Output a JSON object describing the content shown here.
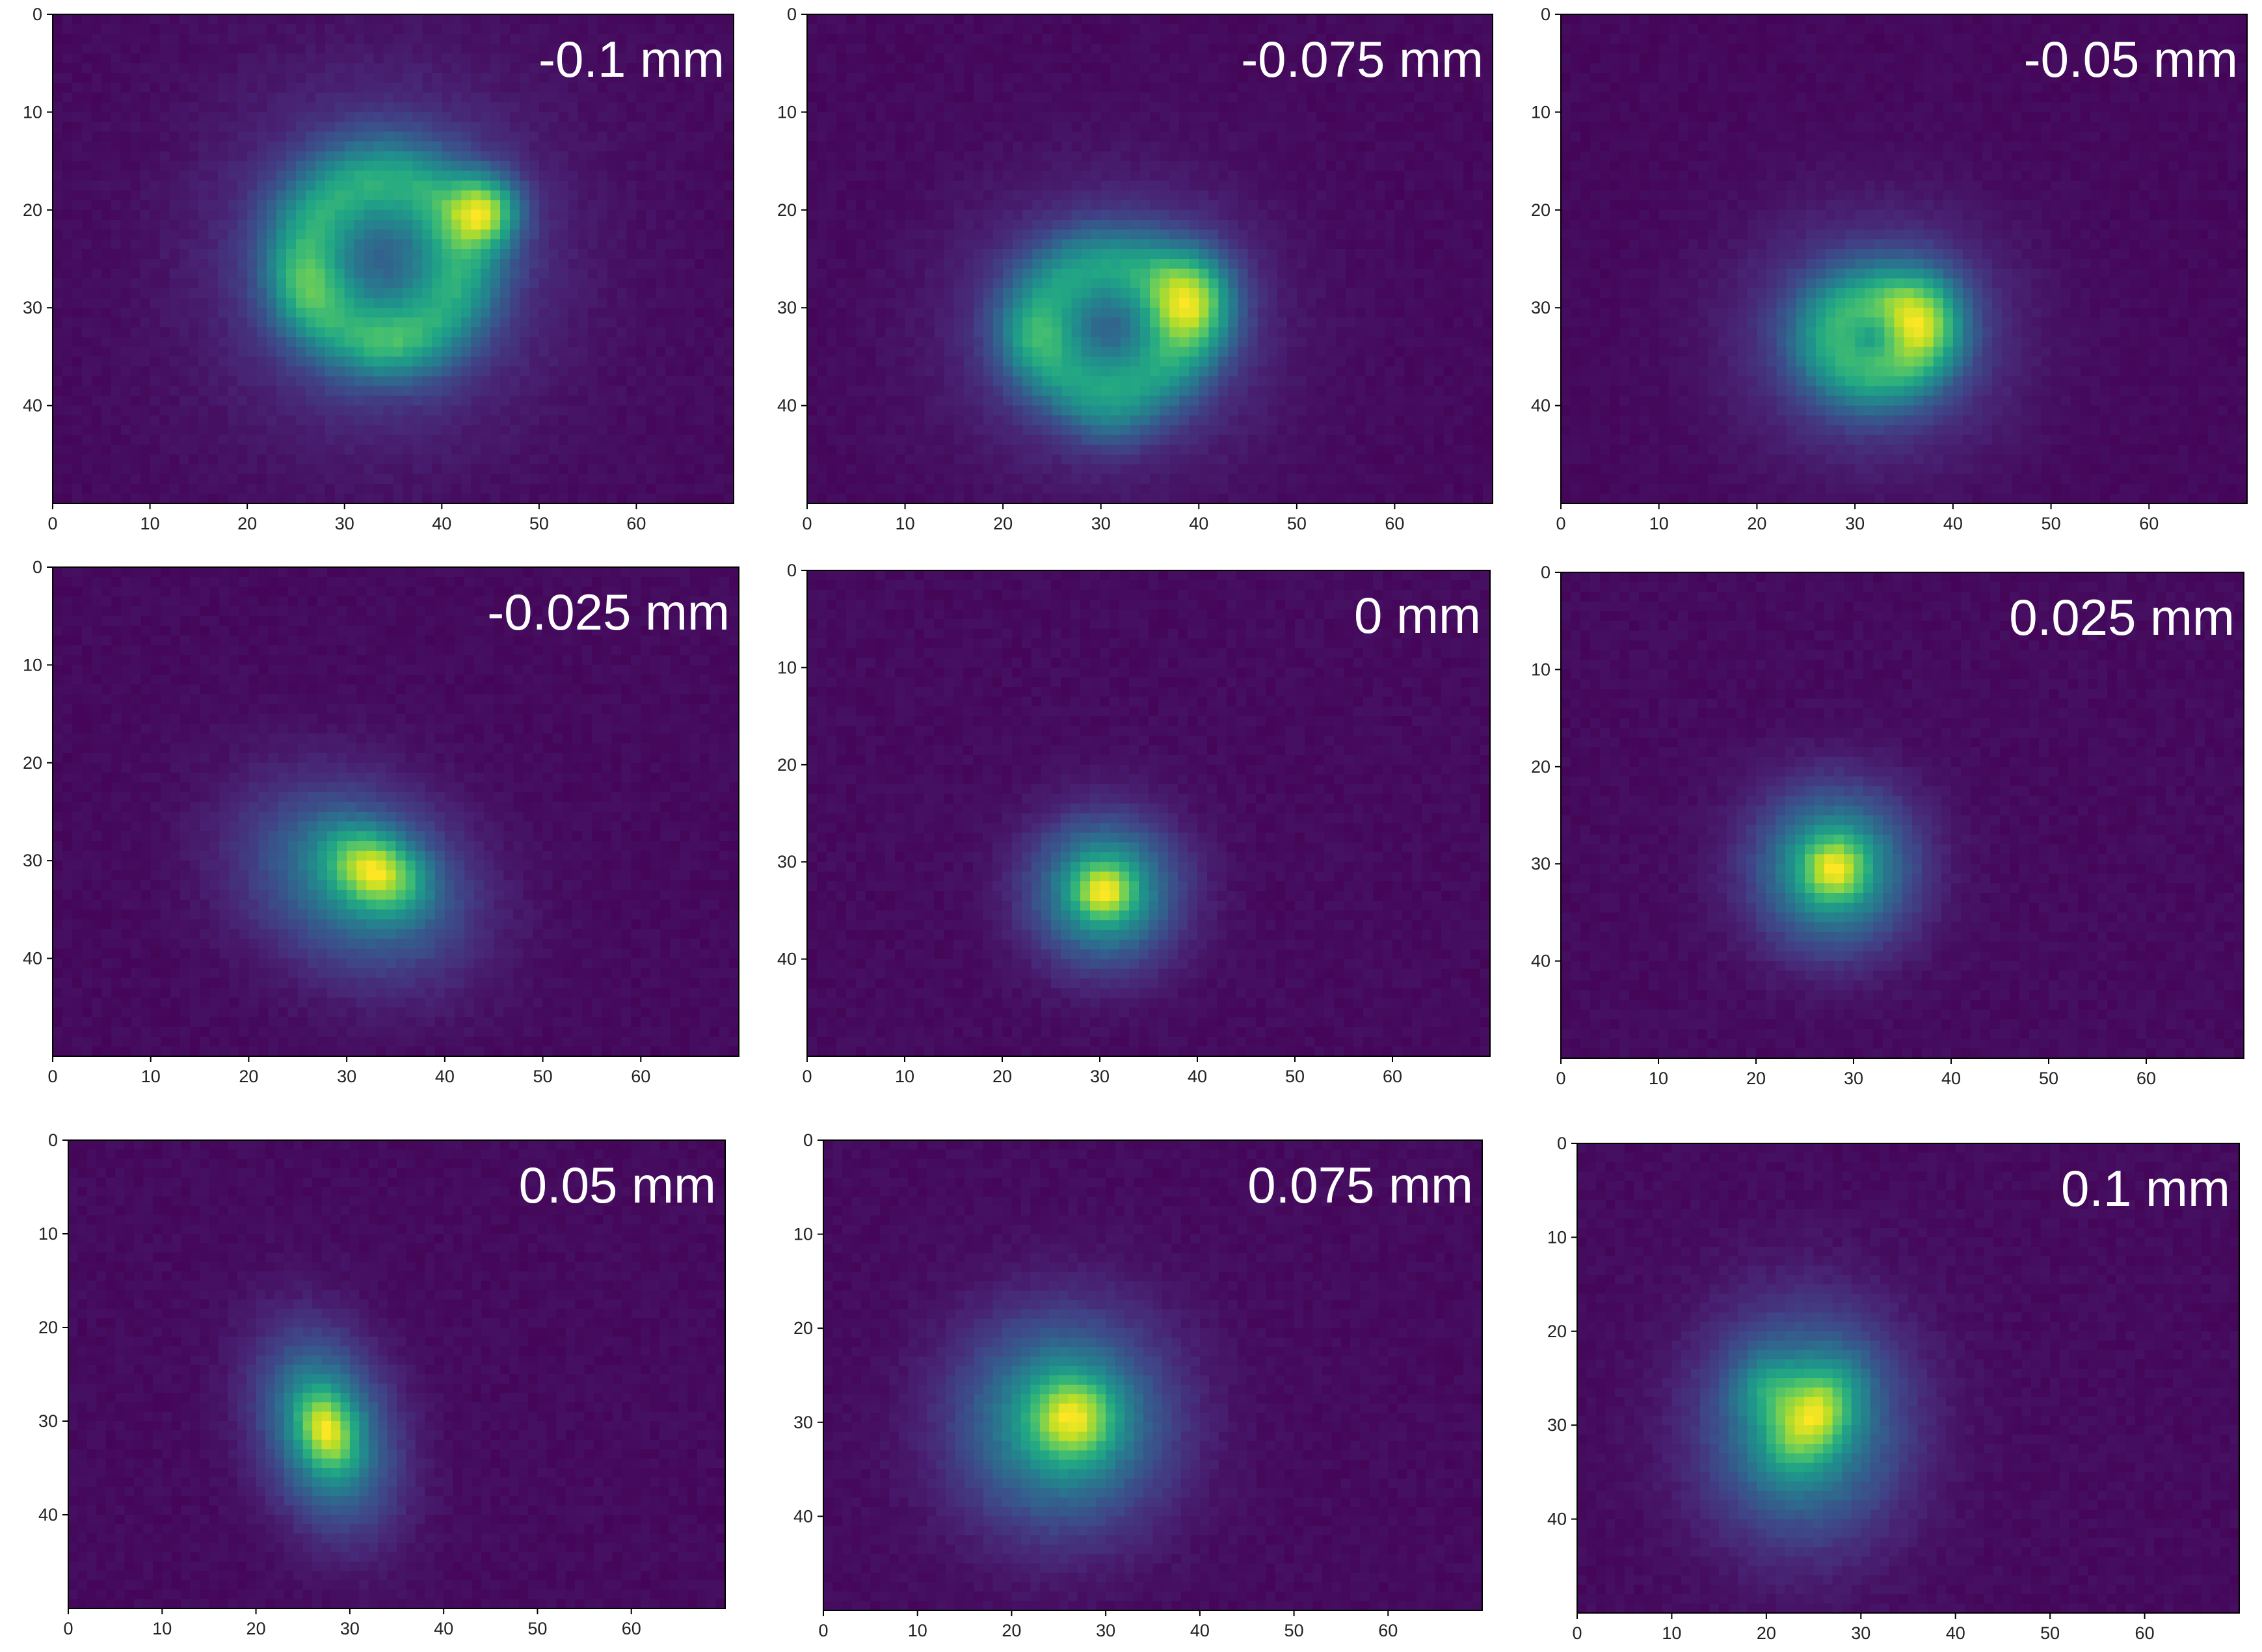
{
  "chart_data": [
    {
      "type": "heatmap",
      "label": "-0.1 mm",
      "rows": 50,
      "cols": 70,
      "xlim": [
        0,
        70
      ],
      "ylim": [
        50,
        0
      ],
      "xticks": [
        0,
        10,
        20,
        30,
        40,
        50,
        60
      ],
      "yticks": [
        0,
        10,
        20,
        30,
        40
      ],
      "colormap": "viridis",
      "blobs": [
        {
          "x": 34,
          "y": 25,
          "sx": 11,
          "sy": 11,
          "amp": 0.5,
          "ring": 8
        },
        {
          "x": 44.5,
          "y": 20,
          "sx": 2.5,
          "sy": 2.5,
          "amp": 0.6
        },
        {
          "x": 26,
          "y": 28,
          "sx": 2.5,
          "sy": 3,
          "amp": 0.15
        },
        {
          "x": 35,
          "y": 34,
          "sx": 3,
          "sy": 2,
          "amp": 0.1
        }
      ]
    },
    {
      "type": "heatmap",
      "label": "-0.075 mm",
      "rows": 50,
      "cols": 70,
      "xlim": [
        0,
        70
      ],
      "ylim": [
        50,
        0
      ],
      "xticks": [
        0,
        10,
        20,
        30,
        40,
        50,
        60
      ],
      "yticks": [
        0,
        10,
        20,
        30,
        40
      ],
      "colormap": "viridis",
      "blobs": [
        {
          "x": 31,
          "y": 32,
          "sx": 10,
          "sy": 9,
          "amp": 0.5,
          "ring": 7
        },
        {
          "x": 39.5,
          "y": 29,
          "sx": 3,
          "sy": 3.5,
          "amp": 0.55
        },
        {
          "x": 23,
          "y": 33,
          "sx": 2.5,
          "sy": 2.5,
          "amp": 0.15
        },
        {
          "x": 31,
          "y": 42,
          "sx": 2.5,
          "sy": 2,
          "amp": 0.1
        }
      ]
    },
    {
      "type": "heatmap",
      "label": "-0.05 mm",
      "rows": 50,
      "cols": 70,
      "xlim": [
        0,
        70
      ],
      "ylim": [
        50,
        0
      ],
      "xticks": [
        0,
        10,
        20,
        30,
        40,
        50,
        60
      ],
      "yticks": [
        0,
        10,
        20,
        30,
        40
      ],
      "colormap": "viridis",
      "blobs": [
        {
          "x": 32,
          "y": 33,
          "sx": 9,
          "sy": 8,
          "amp": 0.6,
          "ring": 4
        },
        {
          "x": 37,
          "y": 31,
          "sx": 3,
          "sy": 3.5,
          "amp": 0.45
        }
      ]
    },
    {
      "type": "heatmap",
      "label": "-0.025 mm",
      "rows": 50,
      "cols": 70,
      "xlim": [
        0,
        70
      ],
      "ylim": [
        50,
        0
      ],
      "xticks": [
        0,
        10,
        20,
        30,
        40,
        50,
        60
      ],
      "yticks": [
        0,
        10,
        20,
        30,
        40
      ],
      "colormap": "viridis",
      "blobs": [
        {
          "x": 31,
          "y": 32,
          "sx": 8,
          "sy": 6,
          "amp": 0.45,
          "rot": -0.5
        },
        {
          "x": 33,
          "y": 31,
          "sx": 3.5,
          "sy": 2.5,
          "amp": 0.6,
          "rot": -0.5
        }
      ]
    },
    {
      "type": "heatmap",
      "label": "0 mm",
      "rows": 50,
      "cols": 70,
      "xlim": [
        0,
        70
      ],
      "ylim": [
        50,
        0
      ],
      "xticks": [
        0,
        10,
        20,
        30,
        40,
        50,
        60
      ],
      "yticks": [
        0,
        10,
        20,
        30,
        40
      ],
      "colormap": "viridis",
      "blobs": [
        {
          "x": 30.5,
          "y": 33,
          "sx": 5,
          "sy": 5,
          "amp": 0.6
        },
        {
          "x": 30.5,
          "y": 33,
          "sx": 2,
          "sy": 2,
          "amp": 0.4
        }
      ]
    },
    {
      "type": "heatmap",
      "label": "0.025 mm",
      "rows": 50,
      "cols": 70,
      "xlim": [
        0,
        70
      ],
      "ylim": [
        50,
        0
      ],
      "xticks": [
        0,
        10,
        20,
        30,
        40,
        50,
        60
      ],
      "yticks": [
        0,
        10,
        20,
        30,
        40
      ],
      "colormap": "viridis",
      "blobs": [
        {
          "x": 28,
          "y": 30.5,
          "sx": 5.5,
          "sy": 5.5,
          "amp": 0.6
        },
        {
          "x": 28,
          "y": 30.5,
          "sx": 2.2,
          "sy": 2.2,
          "amp": 0.4
        }
      ]
    },
    {
      "type": "heatmap",
      "label": "0.05 mm",
      "rows": 50,
      "cols": 70,
      "xlim": [
        0,
        70
      ],
      "ylim": [
        50,
        0
      ],
      "xticks": [
        0,
        10,
        20,
        30,
        40,
        50,
        60
      ],
      "yticks": [
        0,
        10,
        20,
        30,
        40
      ],
      "colormap": "viridis",
      "blobs": [
        {
          "x": 27.5,
          "y": 31,
          "sx": 4.5,
          "sy": 7,
          "amp": 0.55,
          "rot": 0.3
        },
        {
          "x": 27.5,
          "y": 31,
          "sx": 2,
          "sy": 3,
          "amp": 0.45,
          "rot": 0.3
        }
      ]
    },
    {
      "type": "heatmap",
      "label": "0.075 mm",
      "rows": 50,
      "cols": 70,
      "xlim": [
        0,
        70
      ],
      "ylim": [
        50,
        0
      ],
      "xticks": [
        0,
        10,
        20,
        30,
        40,
        50,
        60
      ],
      "yticks": [
        0,
        10,
        20,
        30,
        40
      ],
      "colormap": "viridis",
      "blobs": [
        {
          "x": 25.5,
          "y": 30,
          "sx": 7.5,
          "sy": 7.5,
          "amp": 0.55
        },
        {
          "x": 26.5,
          "y": 29.5,
          "sx": 3,
          "sy": 3,
          "amp": 0.45
        }
      ]
    },
    {
      "type": "heatmap",
      "label": "0.1 mm",
      "rows": 50,
      "cols": 70,
      "xlim": [
        0,
        70
      ],
      "ylim": [
        50,
        0
      ],
      "xticks": [
        0,
        10,
        20,
        30,
        40,
        50,
        60
      ],
      "yticks": [
        0,
        10,
        20,
        30,
        40
      ],
      "colormap": "viridis",
      "blobs": [
        {
          "x": 24,
          "y": 30,
          "sx": 7,
          "sy": 8,
          "amp": 0.5
        },
        {
          "x": 25,
          "y": 29,
          "sx": 2.5,
          "sy": 4,
          "amp": 0.45,
          "rot": -0.6
        },
        {
          "x": 20,
          "y": 26,
          "sx": 2.5,
          "sy": 2.5,
          "amp": 0.2
        }
      ]
    }
  ]
}
